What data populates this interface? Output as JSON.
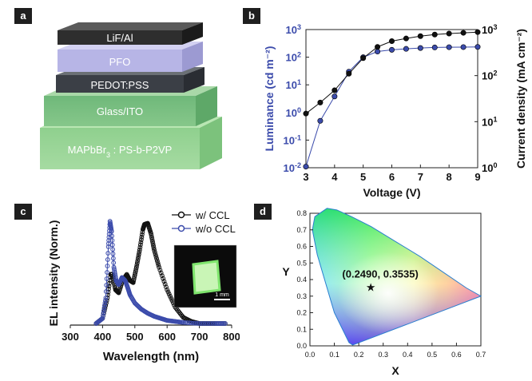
{
  "panels": {
    "a": "a",
    "b": "b",
    "c": "c",
    "d": "d"
  },
  "device_stack": {
    "layers": [
      "LiF/Al",
      "PFO",
      "PEDOT:PSS",
      "Glass/ITO",
      "MAPbBr3 : PS-b-P2VP"
    ],
    "colors": [
      "#2e2e2e",
      "#b7b5e6",
      "#3b3f46",
      "#78c07c",
      "#8fd08e"
    ]
  },
  "chart_data": [
    {
      "panel": "b",
      "type": "line",
      "xlabel": "Voltage (V)",
      "ylabel_left": "Luminance (cd m⁻²)",
      "ylabel_right": "Current density (mA cm⁻²)",
      "xlim": [
        3,
        9
      ],
      "ylim_left": [
        0.01,
        1000
      ],
      "ylim_right": [
        1,
        1000
      ],
      "yscale": "log",
      "x_ticks": [
        "3",
        "4",
        "5",
        "6",
        "7",
        "8",
        "9"
      ],
      "series": [
        {
          "color": "#3b4bab",
          "axis": "left",
          "x": [
            3.0,
            3.5,
            4.0,
            4.5,
            5.0,
            5.5,
            6.0,
            6.5,
            7.0,
            7.5,
            8.0,
            8.5,
            9.0
          ],
          "y": [
            0.011,
            0.5,
            3.8,
            30,
            100,
            160,
            185,
            200,
            215,
            225,
            230,
            232,
            235
          ]
        },
        {
          "color": "#111111",
          "axis": "right",
          "x": [
            3.0,
            3.5,
            4.0,
            4.5,
            5.0,
            5.5,
            6.0,
            6.5,
            7.0,
            7.5,
            8.0,
            8.5,
            9.0
          ],
          "y": [
            15,
            26,
            48,
            110,
            240,
            420,
            560,
            640,
            720,
            780,
            820,
            850,
            880
          ]
        }
      ]
    },
    {
      "panel": "c",
      "type": "line",
      "xlabel": "Wavelength (nm)",
      "ylabel": "EL intensity (Norm.)",
      "xlim": [
        300,
        800
      ],
      "x_ticks": [
        "300",
        "400",
        "500",
        "600",
        "700",
        "800"
      ],
      "series": [
        {
          "name": "w/ CCL",
          "color": "#111111",
          "x": [
            380,
            400,
            415,
            425,
            430,
            440,
            450,
            462,
            475,
            485,
            495,
            505,
            515,
            525,
            530,
            540,
            550,
            560,
            575,
            600,
            625,
            650,
            675,
            700,
            725,
            750,
            780
          ],
          "y": [
            0.0,
            0.05,
            0.25,
            0.48,
            0.48,
            0.33,
            0.3,
            0.42,
            0.48,
            0.42,
            0.4,
            0.55,
            0.72,
            0.92,
            0.97,
            0.98,
            0.88,
            0.72,
            0.55,
            0.33,
            0.16,
            0.06,
            0.02,
            0.0,
            0.0,
            0.0,
            0.0
          ]
        },
        {
          "name": "w/o CCL",
          "color": "#3b4bab",
          "x": [
            380,
            400,
            410,
            418,
            423,
            428,
            435,
            442,
            450,
            460,
            470,
            478,
            485,
            500,
            520,
            540,
            560,
            580,
            600,
            625,
            650,
            700,
            750,
            780
          ],
          "y": [
            0.0,
            0.05,
            0.25,
            0.75,
            1.0,
            0.9,
            0.55,
            0.42,
            0.38,
            0.45,
            0.42,
            0.35,
            0.28,
            0.2,
            0.14,
            0.1,
            0.07,
            0.05,
            0.03,
            0.02,
            0.01,
            0.0,
            0.0,
            0.0
          ]
        }
      ],
      "inset_scale": "1 mm"
    },
    {
      "panel": "d",
      "type": "scatter",
      "xlabel": "X",
      "ylabel": "Y",
      "xlim": [
        0.0,
        0.7
      ],
      "ylim": [
        0.0,
        0.8
      ],
      "x_ticks": [
        "0.0",
        "0.1",
        "0.2",
        "0.3",
        "0.4",
        "0.5",
        "0.6",
        "0.7"
      ],
      "y_ticks": [
        "0.0",
        "0.1",
        "0.2",
        "0.3",
        "0.4",
        "0.5",
        "0.6",
        "0.7",
        "0.8"
      ],
      "point": {
        "x": 0.249,
        "y": 0.3535,
        "label": "(0.2490, 0.3535)"
      }
    }
  ]
}
